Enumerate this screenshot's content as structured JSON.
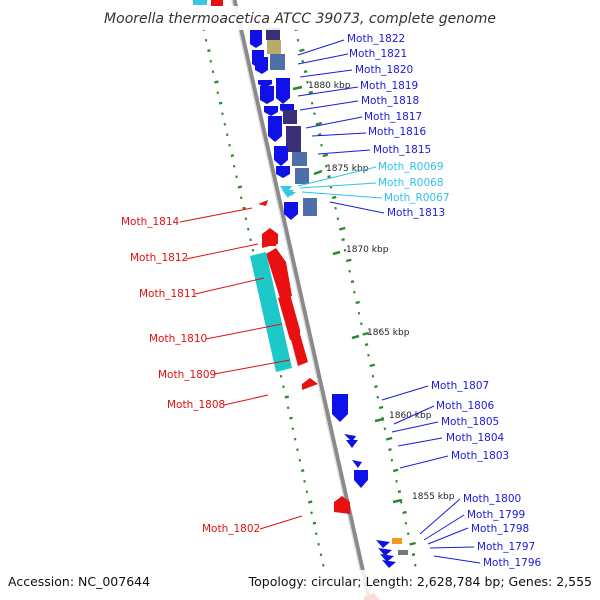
{
  "header": {
    "title": "Moorella thermoacetica ATCC 39073, complete genome"
  },
  "footer": {
    "accession": "Accession: NC_007644",
    "topology": "Topology: circular; Length: 2,628,784 bp; Genes: 2,555"
  },
  "colors": {
    "forward_gene": "#1010e8",
    "reverse_gene": "#e81010",
    "rna_gene": "#36c6e6",
    "cog_teal": "#1cc8c8",
    "cog_slate": "#4f6fa8",
    "cog_purple": "#3a3078",
    "cog_khaki": "#b8ac68",
    "cog_orange": "#f09a20",
    "gc_tick": "#2a8a2a",
    "backbone": "#9a9a9a"
  },
  "kbp_markers": [
    "1880 kbp",
    "1875 kbp",
    "1870 kbp",
    "1865 kbp",
    "1860 kbp",
    "1855 kbp"
  ],
  "genes": [
    {
      "label": "Moth_1822",
      "strand": "forward"
    },
    {
      "label": "Moth_1821",
      "strand": "forward"
    },
    {
      "label": "Moth_1820",
      "strand": "forward"
    },
    {
      "label": "Moth_1819",
      "strand": "forward"
    },
    {
      "label": "Moth_1818",
      "strand": "forward"
    },
    {
      "label": "Moth_1817",
      "strand": "forward"
    },
    {
      "label": "Moth_1816",
      "strand": "forward"
    },
    {
      "label": "Moth_1815",
      "strand": "forward"
    },
    {
      "label": "Moth_R0069",
      "strand": "rna"
    },
    {
      "label": "Moth_R0068",
      "strand": "rna"
    },
    {
      "label": "Moth_R0067",
      "strand": "rna"
    },
    {
      "label": "Moth_1813",
      "strand": "forward"
    },
    {
      "label": "Moth_1814",
      "strand": "reverse"
    },
    {
      "label": "Moth_1812",
      "strand": "reverse"
    },
    {
      "label": "Moth_1811",
      "strand": "reverse"
    },
    {
      "label": "Moth_1810",
      "strand": "reverse"
    },
    {
      "label": "Moth_1809",
      "strand": "reverse"
    },
    {
      "label": "Moth_1808",
      "strand": "reverse"
    },
    {
      "label": "Moth_1807",
      "strand": "forward"
    },
    {
      "label": "Moth_1806",
      "strand": "forward"
    },
    {
      "label": "Moth_1805",
      "strand": "forward"
    },
    {
      "label": "Moth_1804",
      "strand": "forward"
    },
    {
      "label": "Moth_1803",
      "strand": "forward"
    },
    {
      "label": "Moth_1802",
      "strand": "reverse"
    },
    {
      "label": "Moth_1800",
      "strand": "forward"
    },
    {
      "label": "Moth_1799",
      "strand": "forward"
    },
    {
      "label": "Moth_1798",
      "strand": "forward"
    },
    {
      "label": "Moth_1797",
      "strand": "forward"
    },
    {
      "label": "Moth_1796",
      "strand": "forward"
    }
  ]
}
